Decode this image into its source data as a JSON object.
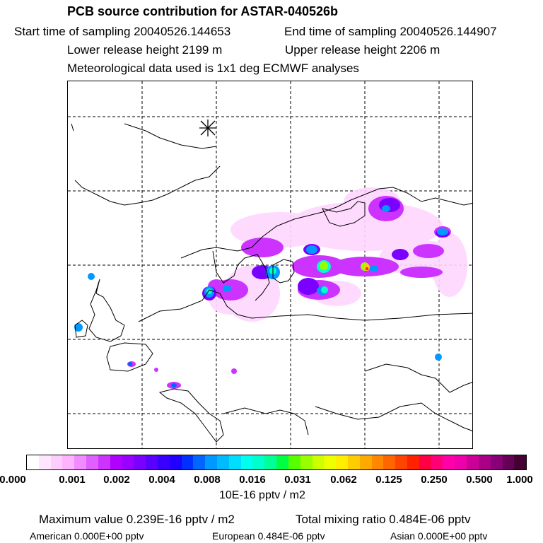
{
  "header": {
    "title": "PCB source contribution for ASTAR-040526b",
    "start_time": "Start time of sampling 20040526.144653",
    "end_time": "End time of sampling 20040526.144907",
    "lower_height": "Lower release height 2199 m",
    "upper_height": "Upper release height 2206 m",
    "meteo": "Meteorological data used is 1x1 deg ECMWF analyses"
  },
  "map": {
    "release_marker_icon": "asterisk-release-point-icon",
    "gridline_style": "dashed",
    "coastline_color": "#000000"
  },
  "colorbar": {
    "colors": [
      "#ffffff",
      "#ffe6ff",
      "#ffccff",
      "#ffb3ff",
      "#f08cff",
      "#e060ff",
      "#cc33ff",
      "#b000ff",
      "#9900ff",
      "#7a00ff",
      "#5a00ff",
      "#3a00ff",
      "#2000ff",
      "#0030ff",
      "#0066ff",
      "#0099ff",
      "#00bbff",
      "#00ddff",
      "#00ffee",
      "#00ffcc",
      "#00ff99",
      "#00ff44",
      "#55ff00",
      "#99ff00",
      "#ccff00",
      "#eeff00",
      "#ffee00",
      "#ffcc00",
      "#ffaa00",
      "#ff8800",
      "#ff6600",
      "#ff4400",
      "#ff2200",
      "#ff0044",
      "#ff0077",
      "#ff00aa",
      "#ee00aa",
      "#cc0099",
      "#aa0088",
      "#880077",
      "#660055",
      "#440033"
    ],
    "ticks": [
      "0.000",
      "0.001",
      "0.002",
      "0.004",
      "0.008",
      "0.016",
      "0.031",
      "0.062",
      "0.125",
      "0.250",
      "0.500",
      "1.000"
    ],
    "unit": "10E-16 pptv / m2"
  },
  "summary": {
    "max_value": "Maximum value  0.239E-16 pptv / m2",
    "total_mixing": "Total mixing ratio  0.484E-06 pptv",
    "american": "American  0.000E+00 pptv",
    "european": "European  0.484E-06 pptv",
    "asian": "Asian  0.000E+00 pptv"
  }
}
